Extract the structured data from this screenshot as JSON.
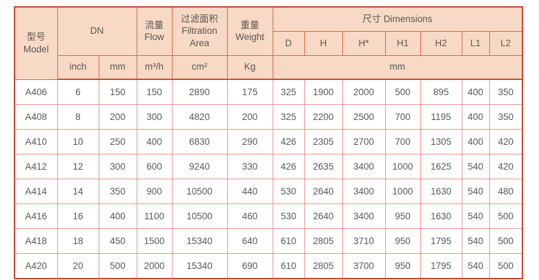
{
  "table": {
    "header": {
      "model": "型号\nModel",
      "dn": "DN",
      "flow": "流量\nFlow",
      "filtration_area": "过滤面积\nFiltration\nArea",
      "weight": "重量\nWeight",
      "dimensions": "尺寸 Dimensions",
      "dim_cols": [
        "D",
        "H",
        "H*",
        "H1",
        "H2",
        "L1",
        "L2"
      ],
      "units": {
        "inch": "inch",
        "mm": "mm",
        "flow": "m³/h",
        "area": "cm²",
        "weight": "Kg",
        "dims": "mm"
      }
    },
    "rows": [
      [
        "A406",
        "6",
        "150",
        "150",
        "2890",
        "175",
        "325",
        "1900",
        "2000",
        "500",
        "895",
        "400",
        "350"
      ],
      [
        "A408",
        "8",
        "200",
        "300",
        "4820",
        "200",
        "325",
        "2200",
        "2500",
        "700",
        "1195",
        "400",
        "350"
      ],
      [
        "A410",
        "10",
        "250",
        "400",
        "6830",
        "290",
        "426",
        "2305",
        "2700",
        "700",
        "1305",
        "400",
        "420"
      ],
      [
        "A412",
        "12",
        "300",
        "600",
        "9240",
        "330",
        "426",
        "2635",
        "3400",
        "1000",
        "1625",
        "540",
        "420"
      ],
      [
        "A414",
        "14",
        "350",
        "900",
        "10500",
        "440",
        "530",
        "2640",
        "3400",
        "1000",
        "1630",
        "540",
        "480"
      ],
      [
        "A416",
        "16",
        "400",
        "1100",
        "10500",
        "460",
        "530",
        "2640",
        "3400",
        "950",
        "1630",
        "540",
        "500"
      ],
      [
        "A418",
        "18",
        "450",
        "1500",
        "15340",
        "640",
        "610",
        "2805",
        "3710",
        "950",
        "1795",
        "540",
        "500"
      ],
      [
        "A420",
        "20",
        "500",
        "2000",
        "15340",
        "690",
        "610",
        "2805",
        "3700",
        "950",
        "1795",
        "540",
        "500"
      ]
    ],
    "colors": {
      "header_bg": "#f8d9c6",
      "header_border": "#de6445",
      "outer_border": "#c9462c",
      "body_border": "#ec938a",
      "text": "#57585a"
    }
  }
}
